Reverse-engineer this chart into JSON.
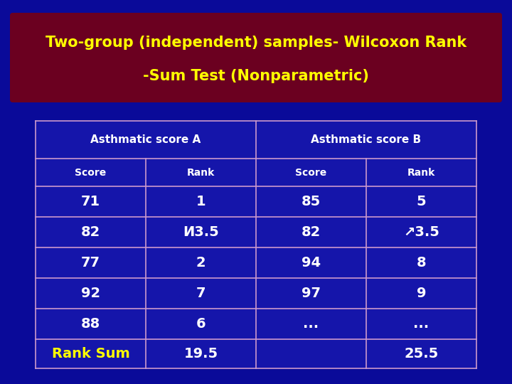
{
  "title_line1": "Two-group (independent) samples- Wilcoxon Rank",
  "title_line2": "-Sum Test (Nonparametric)",
  "title_color": "#FFFF00",
  "title_bg_color": "#6B0020",
  "bg_color": "#0A0A99",
  "table_bg": "#1515AA",
  "header1": "Asthmatic score A",
  "header2": "Asthmatic score B",
  "col_headers": [
    "Score",
    "Rank",
    "Score",
    "Rank"
  ],
  "rows": [
    [
      "71",
      "1",
      "85",
      "5"
    ],
    [
      "82",
      "Ͷ3.5",
      "82",
      "↗3.5"
    ],
    [
      "77",
      "2",
      "94",
      "8"
    ],
    [
      "92",
      "7",
      "97",
      "9"
    ],
    [
      "88",
      "6",
      "...",
      "..."
    ]
  ],
  "footer": [
    "Rank Sum",
    "19.5",
    "",
    "25.5"
  ],
  "line_color": "#CC99CC",
  "cell_text_color": "#FFFFFF",
  "header_text_color": "#FFFFFF",
  "subheader_text_color": "#FFFFFF",
  "rank_sum_color": "#FFFF00",
  "title_fontsize": 15,
  "header_fontsize": 11,
  "subheader_fontsize": 10,
  "data_fontsize": 14,
  "footer_fontsize": 14
}
